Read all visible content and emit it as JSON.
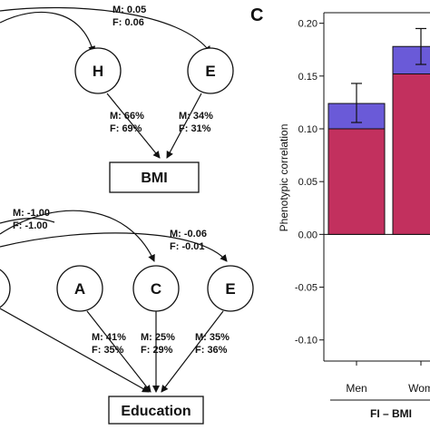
{
  "panel_b": {
    "top": {
      "shared_label_m": "M: 0.05",
      "shared_label_f": "F: 0.06",
      "nodes": [
        {
          "letter": "H",
          "m": "M: 66%",
          "f": "F: 69%"
        },
        {
          "letter": "E",
          "m": "M: 34%",
          "f": "F: 31%"
        }
      ],
      "outcome": "BMI"
    },
    "bottom": {
      "label1_m": "M: -1.00",
      "label1_f": "F: -1.00",
      "label2_m": "M: -0.06",
      "label2_f": "F: -0.01",
      "nodes": [
        {
          "letter": "A",
          "m": "M: 41%",
          "f": "F: 35%"
        },
        {
          "letter": "C",
          "m": "M: 25%",
          "f": "F: 29%"
        },
        {
          "letter": "E",
          "m": "M: 35%",
          "f": "F: 36%"
        }
      ],
      "outcome": "Education"
    }
  },
  "panel_c": {
    "letter": "C",
    "colors": {
      "pink": "#c2305e",
      "purple": "#6a5ad8"
    },
    "chart_data": {
      "type": "bar",
      "ylabel": "Phenotypic correlation",
      "ylim": [
        -0.12,
        0.21
      ],
      "yticks": [
        "0.20",
        "0.15",
        "0.10",
        "0.05",
        "0.00",
        "-0.05",
        "-0.10"
      ],
      "ytick_values": [
        0.2,
        0.15,
        0.1,
        0.05,
        0.0,
        -0.05,
        -0.1
      ],
      "categories": [
        "Men",
        "Wom"
      ],
      "group_label": "FI – BMI",
      "series": [
        {
          "values": [
            0.1,
            0.152
          ],
          "color": "#c2305e"
        },
        {
          "values": [
            0.024,
            0.026
          ],
          "color": "#6a5ad8"
        }
      ],
      "error_bars": [
        {
          "center": 0.124,
          "low": 0.106,
          "high": 0.143
        },
        {
          "center": 0.178,
          "low": 0.161,
          "high": 0.195
        }
      ]
    }
  }
}
